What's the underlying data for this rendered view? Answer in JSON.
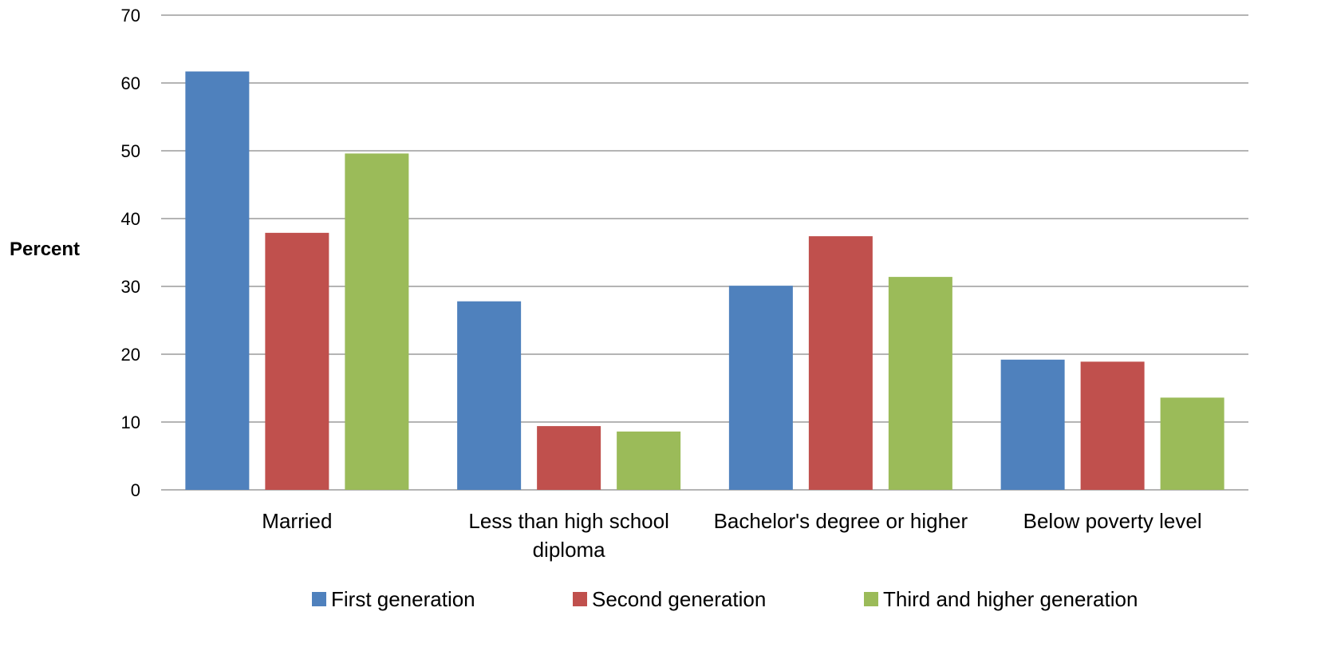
{
  "chart_data": {
    "type": "bar",
    "title": "",
    "xlabel": "",
    "ylabel": "Percent",
    "ylim": [
      0,
      70
    ],
    "yticks": [
      "0",
      "10",
      "20",
      "30",
      "40",
      "50",
      "60",
      "70"
    ],
    "grid": true,
    "legend_position": "bottom",
    "categories": [
      [
        "Married"
      ],
      [
        "Less than high school",
        "diploma"
      ],
      [
        "Bachelor's degree or higher"
      ],
      [
        "Below poverty level"
      ]
    ],
    "series": [
      {
        "name": "First generation",
        "color": "#4F81BD",
        "values": [
          61.7,
          27.8,
          30.1,
          19.2
        ]
      },
      {
        "name": "Second generation",
        "color": "#C0504D",
        "values": [
          37.9,
          9.4,
          37.4,
          18.9
        ]
      },
      {
        "name": "Third and higher generation",
        "color": "#9BBB59",
        "values": [
          49.6,
          8.6,
          31.4,
          13.6
        ]
      }
    ]
  }
}
